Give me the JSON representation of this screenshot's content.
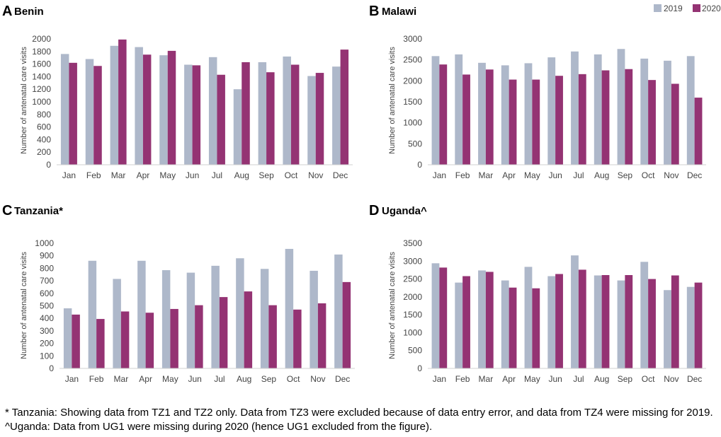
{
  "legend": {
    "items": [
      {
        "label": "2019",
        "color": "#aeb8ca"
      },
      {
        "label": "2020",
        "color": "#943373"
      }
    ]
  },
  "chart_data": [
    {
      "panel": "A",
      "title": "Benin",
      "type": "bar",
      "categories": [
        "Jan",
        "Feb",
        "Mar",
        "Apr",
        "May",
        "Jun",
        "Jul",
        "Aug",
        "Sep",
        "Oct",
        "Nov",
        "Dec"
      ],
      "ylabel": "Number of antenatal care visits",
      "ylim": [
        0,
        2000
      ],
      "yticks": [
        0,
        200,
        400,
        600,
        800,
        1000,
        1200,
        1400,
        1600,
        1800,
        2000
      ],
      "series": [
        {
          "name": "2019",
          "values": [
            1760,
            1680,
            1890,
            1870,
            1740,
            1590,
            1710,
            1200,
            1630,
            1720,
            1410,
            1560
          ]
        },
        {
          "name": "2020",
          "values": [
            1620,
            1570,
            1990,
            1750,
            1810,
            1580,
            1430,
            1630,
            1470,
            1590,
            1460,
            1830
          ]
        }
      ]
    },
    {
      "panel": "B",
      "title": "Malawi",
      "type": "bar",
      "categories": [
        "Jan",
        "Feb",
        "Mar",
        "Apr",
        "May",
        "Jun",
        "Jul",
        "Aug",
        "Sep",
        "Oct",
        "Nov",
        "Dec"
      ],
      "ylabel": "Number of antenatal care visits",
      "ylim": [
        0,
        3000
      ],
      "yticks": [
        0,
        500,
        1000,
        1500,
        2000,
        2500,
        3000
      ],
      "series": [
        {
          "name": "2019",
          "values": [
            2590,
            2630,
            2430,
            2370,
            2420,
            2560,
            2700,
            2630,
            2760,
            2530,
            2480,
            2590
          ]
        },
        {
          "name": "2020",
          "values": [
            2390,
            2150,
            2270,
            2030,
            2030,
            2120,
            2160,
            2250,
            2280,
            2020,
            1930,
            1600
          ]
        }
      ]
    },
    {
      "panel": "C",
      "title": "Tanzania*",
      "type": "bar",
      "categories": [
        "Jan",
        "Feb",
        "Mar",
        "Apr",
        "May",
        "Jun",
        "Jul",
        "Aug",
        "Sep",
        "Oct",
        "Nov",
        "Dec"
      ],
      "ylabel": "Number of antenatal care visits",
      "ylim": [
        0,
        1000
      ],
      "yticks": [
        0,
        100,
        200,
        300,
        400,
        500,
        600,
        700,
        800,
        900,
        1000
      ],
      "series": [
        {
          "name": "2019",
          "values": [
            480,
            860,
            715,
            860,
            785,
            765,
            820,
            880,
            795,
            955,
            780,
            910
          ]
        },
        {
          "name": "2020",
          "values": [
            430,
            395,
            455,
            445,
            475,
            505,
            570,
            615,
            505,
            470,
            520,
            690
          ]
        }
      ]
    },
    {
      "panel": "D",
      "title": "Uganda^",
      "type": "bar",
      "categories": [
        "Jan",
        "Feb",
        "Mar",
        "Apr",
        "May",
        "Jun",
        "Jul",
        "Aug",
        "Sep",
        "Oct",
        "Nov",
        "Dec"
      ],
      "ylabel": "Number of antenatal care visits",
      "ylim": [
        0,
        3500
      ],
      "yticks": [
        0,
        500,
        1000,
        1500,
        2000,
        2500,
        3000,
        3500
      ],
      "series": [
        {
          "name": "2019",
          "values": [
            2940,
            2400,
            2740,
            2460,
            2840,
            2580,
            3160,
            2600,
            2460,
            2980,
            2190,
            2280
          ]
        },
        {
          "name": "2020",
          "values": [
            2820,
            2580,
            2700,
            2260,
            2240,
            2640,
            2760,
            2610,
            2610,
            2500,
            2600,
            2400
          ]
        }
      ]
    }
  ],
  "footnote": "* Tanzania: Showing data from TZ1 and TZ2 only. Data from TZ3 were excluded because of data entry error, and data from TZ4 were missing for 2019. ^Uganda: Data from UG1 were missing during 2020 (hence UG1 excluded from the figure)."
}
